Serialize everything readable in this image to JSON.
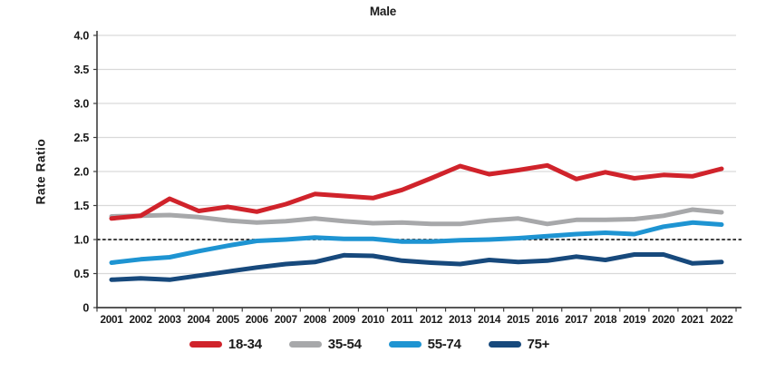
{
  "chart_data": {
    "type": "line",
    "title": "Male",
    "xlabel": "",
    "ylabel": "Rate Ratio",
    "categories": [
      "2001",
      "2002",
      "2003",
      "2004",
      "2005",
      "2006",
      "2007",
      "2008",
      "2009",
      "2010",
      "2011",
      "2012",
      "2013",
      "2014",
      "2015",
      "2016",
      "2017",
      "2018",
      "2019",
      "2020",
      "2021",
      "2022"
    ],
    "ylim": [
      0,
      4.0
    ],
    "yticks": [
      0,
      0.5,
      1.0,
      1.5,
      2.0,
      2.5,
      3.0,
      3.5,
      4.0
    ],
    "ytick_labels": [
      "0",
      "0.5",
      "1.0",
      "1.5",
      "2.0",
      "2.5",
      "3.0",
      "3.5",
      "4.0"
    ],
    "grid": true,
    "reference_line_y": 1.0,
    "legend_position": "bottom-center",
    "series": [
      {
        "name": "18-34",
        "color": "#d0232b",
        "values": [
          1.31,
          1.35,
          1.6,
          1.42,
          1.48,
          1.41,
          1.52,
          1.67,
          1.64,
          1.61,
          1.73,
          1.9,
          2.08,
          1.96,
          2.02,
          2.09,
          1.89,
          1.99,
          1.9,
          1.95,
          1.93,
          2.04
        ]
      },
      {
        "name": "35-54",
        "color": "#a7a8aa",
        "values": [
          1.34,
          1.35,
          1.36,
          1.33,
          1.28,
          1.25,
          1.27,
          1.31,
          1.27,
          1.24,
          1.25,
          1.23,
          1.23,
          1.28,
          1.31,
          1.23,
          1.29,
          1.29,
          1.3,
          1.35,
          1.44,
          1.4
        ]
      },
      {
        "name": "55-74",
        "color": "#1e94d2",
        "values": [
          0.66,
          0.71,
          0.74,
          0.83,
          0.91,
          0.98,
          1.0,
          1.03,
          1.01,
          1.01,
          0.97,
          0.97,
          0.99,
          1.0,
          1.02,
          1.05,
          1.08,
          1.1,
          1.08,
          1.19,
          1.25,
          1.22
        ]
      },
      {
        "name": "75+",
        "color": "#17497c",
        "values": [
          0.41,
          0.43,
          0.41,
          0.47,
          0.53,
          0.59,
          0.64,
          0.67,
          0.77,
          0.76,
          0.69,
          0.66,
          0.64,
          0.7,
          0.67,
          0.69,
          0.75,
          0.7,
          0.78,
          0.78,
          0.65,
          0.67
        ]
      }
    ],
    "colors": {
      "grid": "#d9d9d9",
      "axis": "#3f3f3f",
      "reference_line": "#000000",
      "text": "#1a1a1a",
      "background": "#ffffff"
    }
  }
}
